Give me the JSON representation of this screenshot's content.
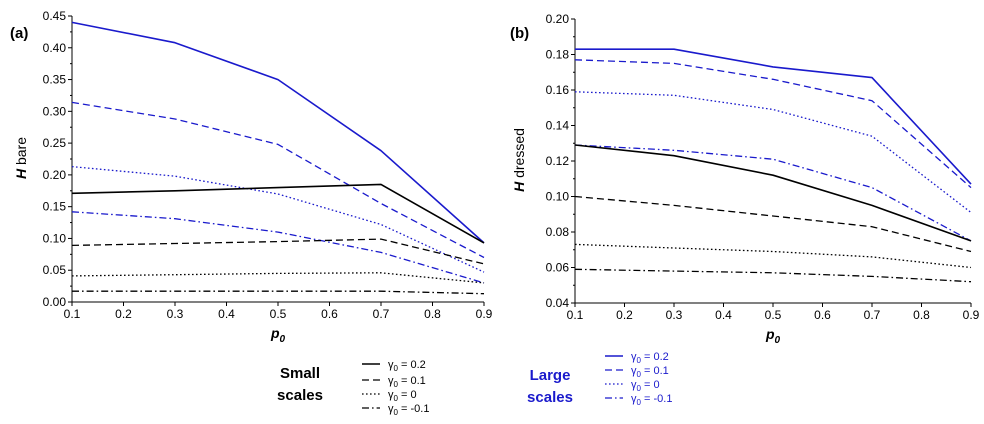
{
  "colors": {
    "small": "#000000",
    "large": "#1a1acc"
  },
  "chart_data": [
    {
      "panel": "(a)",
      "type": "line",
      "xlabel": "p0",
      "ylabel": "H bare",
      "xlim": [
        0.1,
        0.9
      ],
      "ylim": [
        0,
        0.45
      ],
      "xticks": [
        0.1,
        0.2,
        0.3,
        0.4,
        0.5,
        0.6,
        0.7,
        0.8,
        0.9
      ],
      "yticks": [
        0.0,
        0.05,
        0.1,
        0.15,
        0.2,
        0.25,
        0.3,
        0.35,
        0.4,
        0.45
      ],
      "xtick_labels": [
        "0.1",
        "0.2",
        "0.3",
        "0.4",
        "0.5",
        "0.6",
        "0.7",
        "0.8",
        "0.9"
      ],
      "ytick_labels": [
        "0.00",
        "0.05",
        "0.10",
        "0.15",
        "0.20",
        "0.25",
        "0.30",
        "0.35",
        "0.40",
        "0.45"
      ],
      "x": [
        0.1,
        0.3,
        0.5,
        0.7,
        0.9
      ],
      "series": [
        {
          "group": "Large scales",
          "legend": "γ0 = 0.2",
          "dash": "solid",
          "values": [
            0.44,
            0.408,
            0.35,
            0.238,
            0.093
          ]
        },
        {
          "group": "Large scales",
          "legend": "γ0 = 0.1",
          "dash": "dash",
          "values": [
            0.314,
            0.288,
            0.248,
            0.155,
            0.07
          ]
        },
        {
          "group": "Large scales",
          "legend": "γ0 = 0",
          "dash": "dot",
          "values": [
            0.213,
            0.198,
            0.17,
            0.122,
            0.047
          ]
        },
        {
          "group": "Large scales",
          "legend": "γ0 = -0.1",
          "dash": "dashdot",
          "values": [
            0.142,
            0.131,
            0.11,
            0.078,
            0.03
          ]
        },
        {
          "group": "Small scales",
          "legend": "γ0 = 0.2",
          "dash": "solid",
          "values": [
            0.171,
            0.175,
            0.18,
            0.185,
            0.093
          ]
        },
        {
          "group": "Small scales",
          "legend": "γ0 = 0.1",
          "dash": "dash",
          "values": [
            0.089,
            0.092,
            0.095,
            0.099,
            0.06
          ]
        },
        {
          "group": "Small scales",
          "legend": "γ0 = 0",
          "dash": "dot",
          "values": [
            0.041,
            0.043,
            0.045,
            0.046,
            0.03
          ]
        },
        {
          "group": "Small scales",
          "legend": "γ0 = -0.1",
          "dash": "dashdot",
          "values": [
            0.017,
            0.017,
            0.017,
            0.017,
            0.013
          ]
        }
      ]
    },
    {
      "panel": "(b)",
      "type": "line",
      "xlabel": "p0",
      "ylabel": "H dressed",
      "xlim": [
        0.1,
        0.9
      ],
      "ylim": [
        0.04,
        0.2
      ],
      "xticks": [
        0.1,
        0.2,
        0.3,
        0.4,
        0.5,
        0.6,
        0.7,
        0.8,
        0.9
      ],
      "yticks": [
        0.04,
        0.06,
        0.08,
        0.1,
        0.12,
        0.14,
        0.16,
        0.18,
        0.2
      ],
      "xtick_labels": [
        "0.1",
        "0.2",
        "0.3",
        "0.4",
        "0.5",
        "0.6",
        "0.7",
        "0.8",
        "0.9"
      ],
      "ytick_labels": [
        "0.04",
        "0.06",
        "0.08",
        "0.10",
        "0.12",
        "0.14",
        "0.16",
        "0.18",
        "0.20"
      ],
      "x": [
        0.1,
        0.3,
        0.5,
        0.7,
        0.9
      ],
      "series": [
        {
          "group": "Large scales",
          "legend": "γ0 = 0.2",
          "dash": "solid",
          "values": [
            0.183,
            0.183,
            0.173,
            0.167,
            0.107
          ]
        },
        {
          "group": "Large scales",
          "legend": "γ0 = 0.1",
          "dash": "dash",
          "values": [
            0.177,
            0.175,
            0.166,
            0.154,
            0.105
          ]
        },
        {
          "group": "Large scales",
          "legend": "γ0 = 0",
          "dash": "dot",
          "values": [
            0.159,
            0.157,
            0.149,
            0.134,
            0.091
          ]
        },
        {
          "group": "Large scales",
          "legend": "γ0 = -0.1",
          "dash": "dashdot",
          "values": [
            0.129,
            0.126,
            0.121,
            0.105,
            0.075
          ]
        },
        {
          "group": "Small scales",
          "legend": "γ0 = 0.2",
          "dash": "solid",
          "values": [
            0.129,
            0.123,
            0.112,
            0.095,
            0.075
          ]
        },
        {
          "group": "Small scales",
          "legend": "γ0 = 0.1",
          "dash": "dash",
          "values": [
            0.1,
            0.095,
            0.089,
            0.083,
            0.069
          ]
        },
        {
          "group": "Small scales",
          "legend": "γ0 = 0",
          "dash": "dot",
          "values": [
            0.073,
            0.071,
            0.069,
            0.066,
            0.06
          ]
        },
        {
          "group": "Small scales",
          "legend": "γ0 = -0.1",
          "dash": "dashdot",
          "values": [
            0.059,
            0.058,
            0.057,
            0.055,
            0.052
          ]
        }
      ]
    }
  ],
  "legend": [
    {
      "title_lines": [
        "Small",
        "scales"
      ],
      "group": "Small scales",
      "color": "#000000",
      "entries": [
        {
          "text": "γ0 = 0.2",
          "dash": "solid"
        },
        {
          "text": "γ0 = 0.1",
          "dash": "dash"
        },
        {
          "text": "γ0 = 0",
          "dash": "dot"
        },
        {
          "text": "γ0 = -0.1",
          "dash": "dashdot"
        }
      ]
    },
    {
      "title_lines": [
        "Large",
        "scales"
      ],
      "group": "Large scales",
      "color": "#1a1acc",
      "entries": [
        {
          "text": "γ0 = 0.2",
          "dash": "solid"
        },
        {
          "text": "γ0 = 0.1",
          "dash": "dash"
        },
        {
          "text": "γ0 = 0",
          "dash": "dot"
        },
        {
          "text": "γ0 = -0.1",
          "dash": "dashdot"
        }
      ]
    }
  ]
}
